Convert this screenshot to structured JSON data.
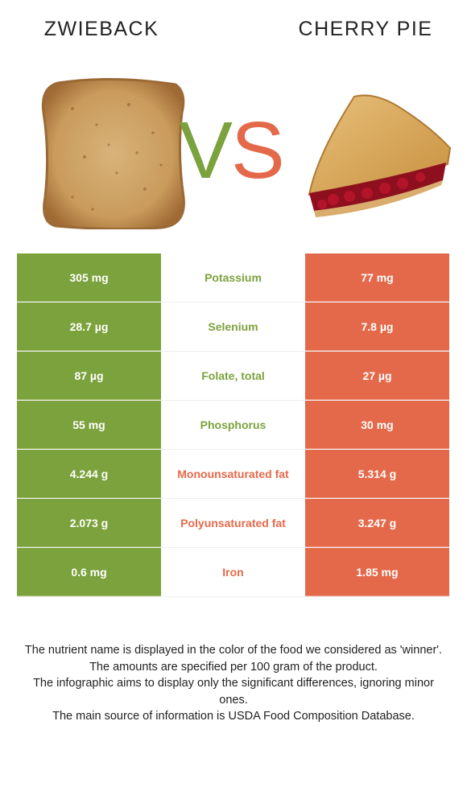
{
  "header": {
    "left_food": "ZWIEBACK",
    "right_food": "CHERRY PIE",
    "vs_v": "V",
    "vs_s": "S"
  },
  "colors": {
    "left_winner": "#7ba23c",
    "right_winner": "#e4694a"
  },
  "rows": [
    {
      "nutrient": "Potassium",
      "left": "305 mg",
      "right": "77 mg",
      "winner": "left"
    },
    {
      "nutrient": "Selenium",
      "left": "28.7 µg",
      "right": "7.8 µg",
      "winner": "left"
    },
    {
      "nutrient": "Folate, total",
      "left": "87 µg",
      "right": "27 µg",
      "winner": "left"
    },
    {
      "nutrient": "Phosphorus",
      "left": "55 mg",
      "right": "30 mg",
      "winner": "left"
    },
    {
      "nutrient": "Monounsaturated fat",
      "left": "4.244 g",
      "right": "5.314 g",
      "winner": "right"
    },
    {
      "nutrient": "Polyunsaturated fat",
      "left": "2.073 g",
      "right": "3.247 g",
      "winner": "right"
    },
    {
      "nutrient": "Iron",
      "left": "0.6 mg",
      "right": "1.85 mg",
      "winner": "right"
    }
  ],
  "footnote": [
    "The nutrient name is displayed in the color of the food we considered as 'winner'.",
    "The amounts are specified per 100 gram of the product.",
    "The infographic aims to display only the significant differences, ignoring minor ones.",
    "The main source of information is USDA Food Composition Database."
  ]
}
